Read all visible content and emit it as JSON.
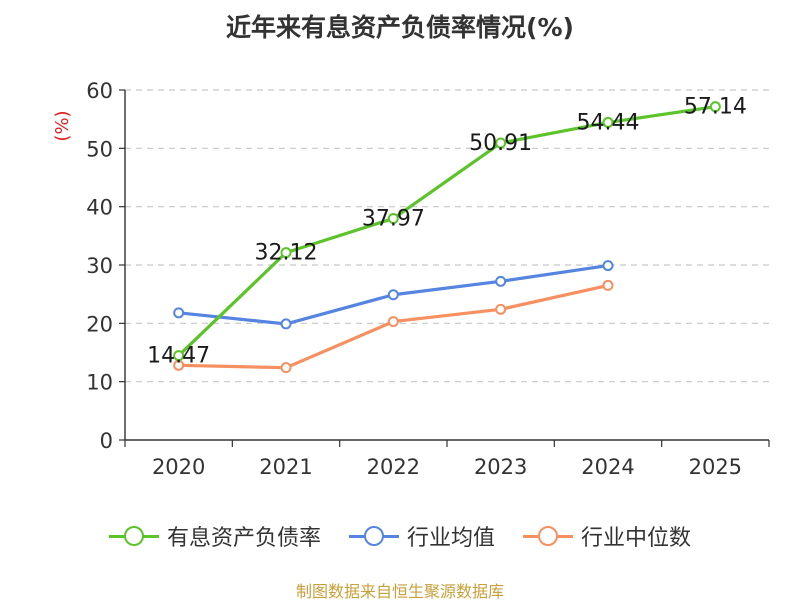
{
  "title": "近年来有息资产负债率情况(%)",
  "source": "制图数据来自恒生聚源数据库",
  "chart_data": {
    "type": "line",
    "title": "近年来有息资产负债率情况(%)",
    "ylabel": "(%)",
    "xlabel": "",
    "categories": [
      "2020",
      "2021",
      "2022",
      "2023",
      "2024",
      "2025"
    ],
    "ylim": [
      0,
      60
    ],
    "yticks": [
      0,
      10,
      20,
      30,
      40,
      50,
      60
    ],
    "grid": true,
    "legend_position": "bottom",
    "series": [
      {
        "name": "有息资产负债率",
        "color": "#5cc42a",
        "values": [
          14.47,
          32.12,
          37.97,
          50.91,
          54.44,
          57.14
        ],
        "labels": [
          "14.47",
          "32.12",
          "37.97",
          "50.91",
          "54.44",
          "57.14"
        ]
      },
      {
        "name": "行业均值",
        "color": "#5585e0",
        "values": [
          21.8,
          19.9,
          24.9,
          27.2,
          29.9,
          null
        ],
        "labels": []
      },
      {
        "name": "行业中位数",
        "color": "#f79060",
        "values": [
          12.8,
          12.4,
          20.3,
          22.4,
          26.5,
          null
        ],
        "labels": []
      }
    ]
  }
}
